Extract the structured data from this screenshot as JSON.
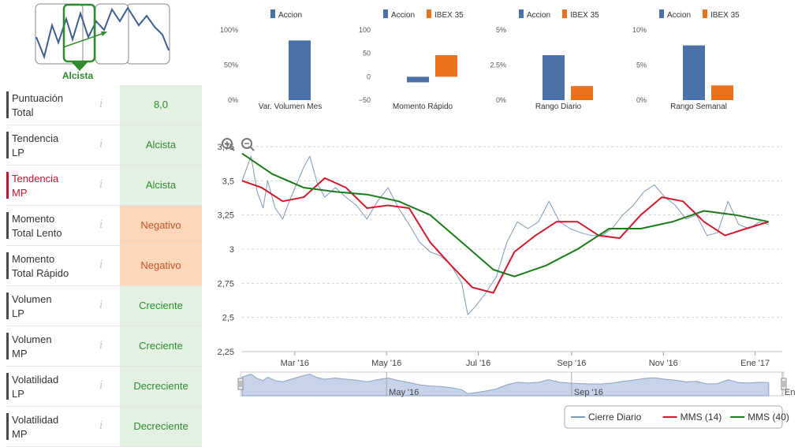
{
  "trend": {
    "label": "Alcista"
  },
  "indicators": [
    {
      "label": "Puntuación\nTotal",
      "value": "8,0",
      "status": "green",
      "highlight": false
    },
    {
      "label": "Tendencia\nLP",
      "value": "Alcista",
      "status": "green",
      "highlight": false
    },
    {
      "label": "Tendencia\nMP",
      "value": "Alcista",
      "status": "green",
      "highlight": true
    },
    {
      "label": "Momento\nTotal Lento",
      "value": "Negativo",
      "status": "orange",
      "highlight": false
    },
    {
      "label": "Momento\nTotal Rápido",
      "value": "Negativo",
      "status": "orange",
      "highlight": false
    },
    {
      "label": "Volumen\nLP",
      "value": "Creciente",
      "status": "green",
      "highlight": false
    },
    {
      "label": "Volumen\nMP",
      "value": "Creciente",
      "status": "green",
      "highlight": false
    },
    {
      "label": "Volatilidad\nLP",
      "value": "Decreciente",
      "status": "green",
      "highlight": false
    },
    {
      "label": "Volatilidad\nMP",
      "value": "Decreciente",
      "status": "green",
      "highlight": false
    }
  ],
  "info_glyph": "i",
  "colors": {
    "accion": "#4a72a8",
    "ibex": "#e8711c",
    "cierre": "#7d97b8",
    "mms14": "#d0192b",
    "mms40": "#1a7a1a",
    "green_cell": "#e3f1e3",
    "orange_cell": "#fbd6b8"
  },
  "chart_data": [
    {
      "type": "bar",
      "title": "Var. Volumen Mes",
      "legend": [
        "Accion"
      ],
      "series": [
        {
          "name": "Accion",
          "values": [
            85
          ]
        }
      ],
      "ylim": [
        0,
        100
      ],
      "yticks": [
        "100%",
        "50%",
        "0%"
      ],
      "ytick_values": [
        100,
        50,
        0
      ]
    },
    {
      "type": "bar",
      "title": "Momento Rápido",
      "legend": [
        "Accion",
        "IBEX 35"
      ],
      "series": [
        {
          "name": "Accion",
          "values": [
            -12
          ]
        },
        {
          "name": "IBEX 35",
          "values": [
            46
          ]
        }
      ],
      "ylim": [
        -50,
        100
      ],
      "yticks": [
        "100",
        "50",
        "0",
        "−50"
      ],
      "ytick_values": [
        100,
        50,
        0,
        -50
      ]
    },
    {
      "type": "bar",
      "title": "Rango Diario",
      "legend": [
        "Accion",
        "IBEX 35"
      ],
      "series": [
        {
          "name": "Accion",
          "values": [
            3.2
          ]
        },
        {
          "name": "IBEX 35",
          "values": [
            1.0
          ]
        }
      ],
      "ylim": [
        0,
        5
      ],
      "yticks": [
        "5%",
        "2.5%",
        "0%"
      ],
      "ytick_values": [
        5,
        2.5,
        0
      ]
    },
    {
      "type": "bar",
      "title": "Rango Semanal",
      "legend": [
        "Accion",
        "IBEX 35"
      ],
      "series": [
        {
          "name": "Accion",
          "values": [
            7.8
          ]
        },
        {
          "name": "IBEX 35",
          "values": [
            2.1
          ]
        }
      ],
      "ylim": [
        0,
        10
      ],
      "yticks": [
        "10%",
        "5%",
        "0%"
      ],
      "ytick_values": [
        10,
        5,
        0
      ]
    },
    {
      "type": "line",
      "xlim": [
        "2016-01-26",
        "2017-01-19"
      ],
      "ylim": [
        2.25,
        3.75
      ],
      "yticks": [
        "2,25",
        "2,5",
        "2,75",
        "3",
        "3,25",
        "3,5",
        "3,75"
      ],
      "ytick_values": [
        2.25,
        2.5,
        2.75,
        3,
        3.25,
        3.5,
        3.75
      ],
      "xticks": [
        {
          "date": "2016-03-01",
          "label": "Mar '16"
        },
        {
          "date": "2016-05-01",
          "label": "May '16"
        },
        {
          "date": "2016-07-01",
          "label": "Jul '16"
        },
        {
          "date": "2016-09-01",
          "label": "Sep '16"
        },
        {
          "date": "2016-11-01",
          "label": "Nov '16"
        },
        {
          "date": "2017-01-01",
          "label": "Ene '17"
        }
      ],
      "navigator_labels": [
        {
          "date": "2016-05-01",
          "label": "May '16"
        },
        {
          "date": "2016-09-01",
          "label": "Sep '16"
        },
        {
          "date": "2017-01-19",
          "label": "En"
        }
      ],
      "series": [
        {
          "name": "Cierre Diario",
          "points": [
            [
              "2016-01-26",
              3.5
            ],
            [
              "2016-02-01",
              3.68
            ],
            [
              "2016-02-05",
              3.42
            ],
            [
              "2016-02-09",
              3.3
            ],
            [
              "2016-02-12",
              3.5
            ],
            [
              "2016-02-17",
              3.3
            ],
            [
              "2016-02-22",
              3.22
            ],
            [
              "2016-02-26",
              3.34
            ],
            [
              "2016-03-02",
              3.47
            ],
            [
              "2016-03-07",
              3.6
            ],
            [
              "2016-03-11",
              3.68
            ],
            [
              "2016-03-16",
              3.48
            ],
            [
              "2016-03-21",
              3.38
            ],
            [
              "2016-03-28",
              3.45
            ],
            [
              "2016-04-04",
              3.38
            ],
            [
              "2016-04-11",
              3.32
            ],
            [
              "2016-04-18",
              3.22
            ],
            [
              "2016-04-25",
              3.35
            ],
            [
              "2016-05-02",
              3.45
            ],
            [
              "2016-05-09",
              3.3
            ],
            [
              "2016-05-16",
              3.18
            ],
            [
              "2016-05-23",
              3.05
            ],
            [
              "2016-05-30",
              2.98
            ],
            [
              "2016-06-06",
              2.95
            ],
            [
              "2016-06-13",
              2.88
            ],
            [
              "2016-06-20",
              2.75
            ],
            [
              "2016-06-24",
              2.52
            ],
            [
              "2016-06-29",
              2.58
            ],
            [
              "2016-07-06",
              2.68
            ],
            [
              "2016-07-13",
              2.8
            ],
            [
              "2016-07-20",
              3.05
            ],
            [
              "2016-07-27",
              3.2
            ],
            [
              "2016-08-03",
              3.15
            ],
            [
              "2016-08-10",
              3.2
            ],
            [
              "2016-08-17",
              3.35
            ],
            [
              "2016-08-24",
              3.2
            ],
            [
              "2016-08-31",
              3.15
            ],
            [
              "2016-09-07",
              3.12
            ],
            [
              "2016-09-14",
              3.1
            ],
            [
              "2016-09-21",
              3.1
            ],
            [
              "2016-09-28",
              3.15
            ],
            [
              "2016-10-05",
              3.25
            ],
            [
              "2016-10-12",
              3.32
            ],
            [
              "2016-10-19",
              3.42
            ],
            [
              "2016-10-26",
              3.47
            ],
            [
              "2016-11-02",
              3.38
            ],
            [
              "2016-11-09",
              3.32
            ],
            [
              "2016-11-16",
              3.22
            ],
            [
              "2016-11-23",
              3.25
            ],
            [
              "2016-11-30",
              3.1
            ],
            [
              "2016-12-07",
              3.12
            ],
            [
              "2016-12-14",
              3.35
            ],
            [
              "2016-12-21",
              3.18
            ],
            [
              "2016-12-28",
              3.15
            ],
            [
              "2017-01-04",
              3.2
            ],
            [
              "2017-01-10",
              3.18
            ]
          ]
        },
        {
          "name": "MMS (14)",
          "points": [
            [
              "2016-01-26",
              3.5
            ],
            [
              "2016-02-08",
              3.45
            ],
            [
              "2016-02-22",
              3.35
            ],
            [
              "2016-03-07",
              3.38
            ],
            [
              "2016-03-21",
              3.52
            ],
            [
              "2016-04-04",
              3.45
            ],
            [
              "2016-04-18",
              3.3
            ],
            [
              "2016-05-02",
              3.32
            ],
            [
              "2016-05-16",
              3.3
            ],
            [
              "2016-05-30",
              3.05
            ],
            [
              "2016-06-13",
              2.88
            ],
            [
              "2016-06-27",
              2.72
            ],
            [
              "2016-07-11",
              2.68
            ],
            [
              "2016-07-25",
              2.98
            ],
            [
              "2016-08-08",
              3.1
            ],
            [
              "2016-08-22",
              3.2
            ],
            [
              "2016-09-05",
              3.2
            ],
            [
              "2016-09-19",
              3.1
            ],
            [
              "2016-10-03",
              3.08
            ],
            [
              "2016-10-17",
              3.25
            ],
            [
              "2016-10-31",
              3.38
            ],
            [
              "2016-11-14",
              3.35
            ],
            [
              "2016-11-28",
              3.2
            ],
            [
              "2016-12-12",
              3.1
            ],
            [
              "2016-12-26",
              3.15
            ],
            [
              "2017-01-10",
              3.2
            ]
          ]
        },
        {
          "name": "MMS (40)",
          "points": [
            [
              "2016-01-26",
              3.7
            ],
            [
              "2016-02-15",
              3.55
            ],
            [
              "2016-03-07",
              3.45
            ],
            [
              "2016-03-28",
              3.42
            ],
            [
              "2016-04-18",
              3.4
            ],
            [
              "2016-05-09",
              3.35
            ],
            [
              "2016-05-30",
              3.25
            ],
            [
              "2016-06-20",
              3.05
            ],
            [
              "2016-07-11",
              2.85
            ],
            [
              "2016-07-25",
              2.8
            ],
            [
              "2016-08-15",
              2.88
            ],
            [
              "2016-09-05",
              3.0
            ],
            [
              "2016-09-26",
              3.15
            ],
            [
              "2016-10-17",
              3.15
            ],
            [
              "2016-11-07",
              3.2
            ],
            [
              "2016-11-28",
              3.28
            ],
            [
              "2016-12-19",
              3.25
            ],
            [
              "2017-01-10",
              3.2
            ]
          ]
        }
      ],
      "navigator_series": "Cierre Diario"
    }
  ],
  "main_legend": [
    {
      "label": "Cierre Diario",
      "color": "#7d97b8"
    },
    {
      "label": "MMS (14)",
      "color": "#d0192b"
    },
    {
      "label": "MMS (40)",
      "color": "#1a7a1a"
    }
  ]
}
